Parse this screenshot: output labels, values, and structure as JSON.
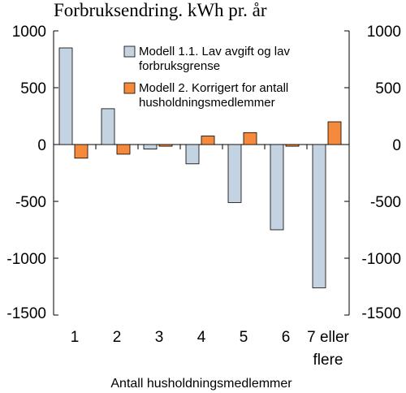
{
  "chart_data": {
    "type": "bar",
    "title": "Forbruksendring. kWh pr. år",
    "xlabel": "Antall husholdningsmedlemmer",
    "ylabel": "",
    "categories": [
      [
        "1"
      ],
      [
        "2"
      ],
      [
        "3"
      ],
      [
        "4"
      ],
      [
        "5"
      ],
      [
        "6"
      ],
      [
        "7 eller",
        "flere"
      ]
    ],
    "ylim": [
      -1500,
      1000
    ],
    "yticks": [
      1000,
      500,
      0,
      -500,
      -1000,
      -1500
    ],
    "ytick_labels": [
      "1000",
      "500",
      "0",
      "-500",
      "-1000",
      "-1500"
    ],
    "grid": false,
    "legend_position": "top-right",
    "series": [
      {
        "name": [
          "Modell 1.1. Lav avgift og lav",
          "forbruksgrense"
        ],
        "color": "#c3d3e1",
        "values": [
          850,
          315,
          -40,
          -170,
          -510,
          -750,
          -1260
        ]
      },
      {
        "name": [
          "Modell 2. Korrigert for antall",
          "husholdningsmedlemmer"
        ],
        "color": "#f58a3c",
        "values": [
          -120,
          -85,
          -15,
          75,
          105,
          -15,
          200
        ]
      }
    ]
  }
}
